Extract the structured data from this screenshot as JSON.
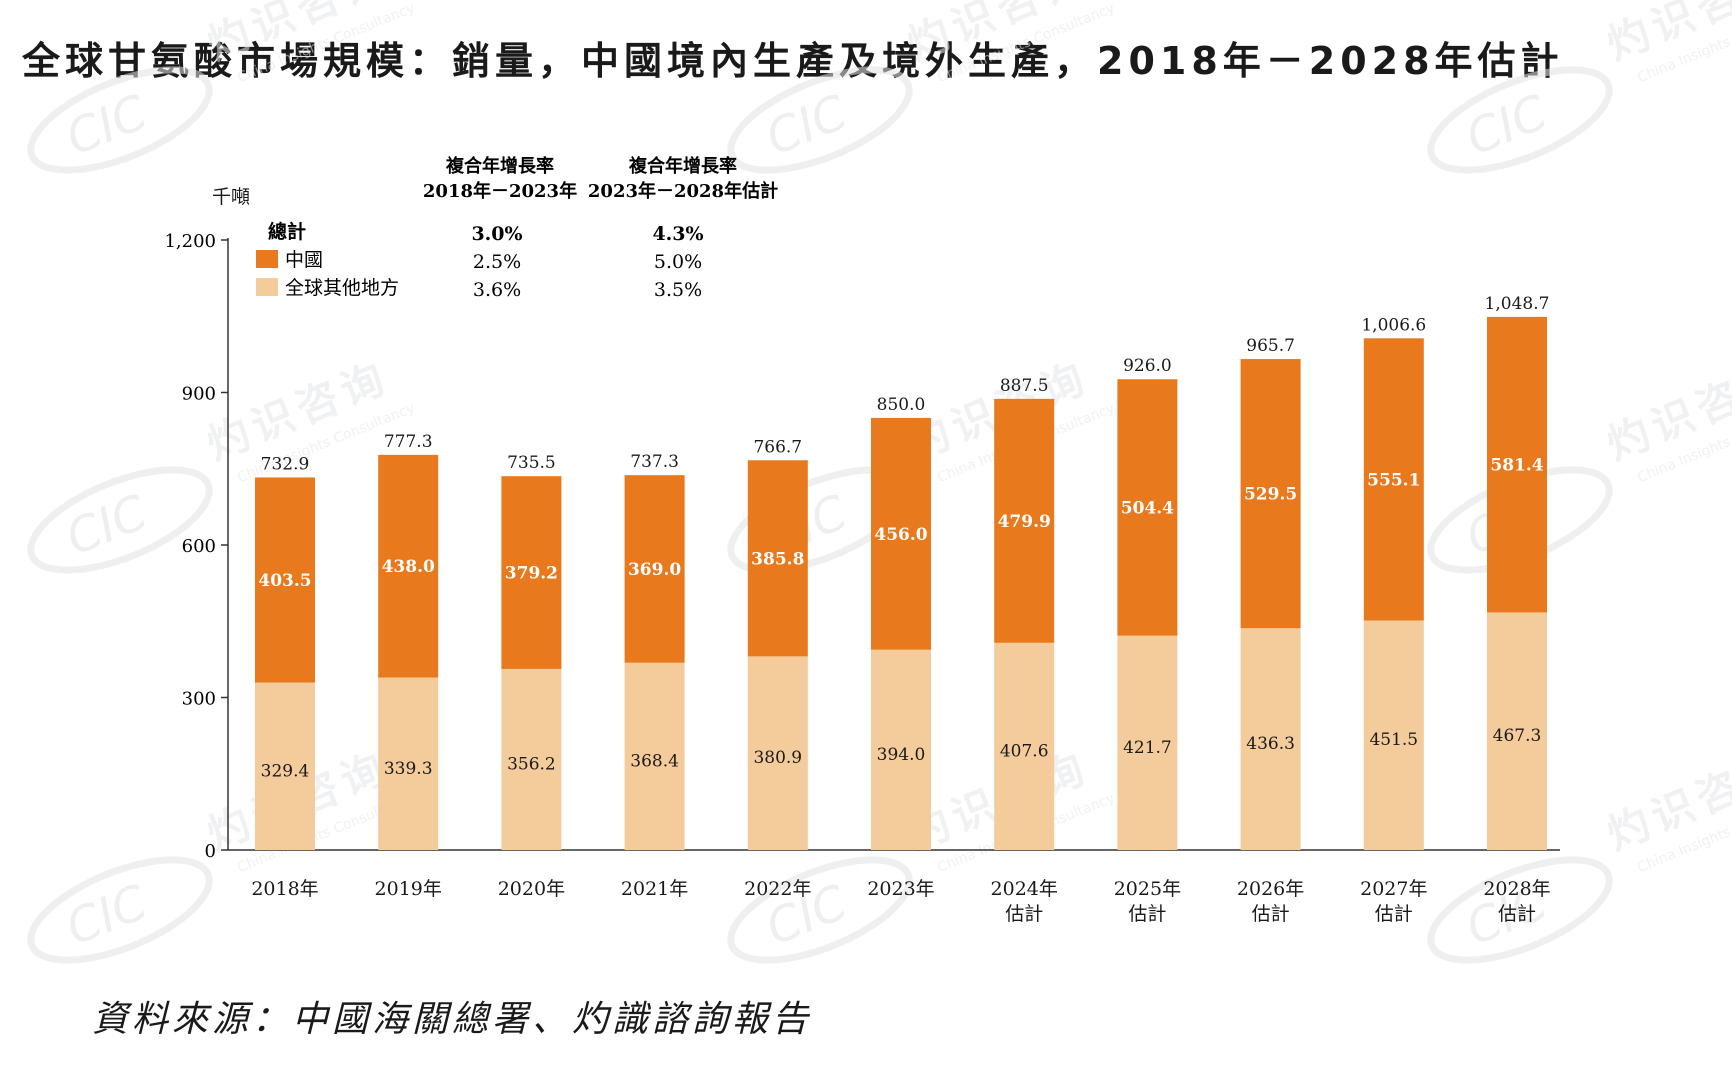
{
  "title": "全球甘氨酸市場規模：銷量，中國境內生產及境外生產，2018年－2028年估計",
  "source": "資料來源：中國海關總署、灼識諮詢報告",
  "watermark": {
    "logo": "CIC",
    "cn": "灼识咨询",
    "en": "China Insights Consultancy"
  },
  "colors": {
    "china": "#e8791c",
    "rest": "#f4cb9b",
    "axis": "#333333"
  },
  "chart_data": {
    "type": "bar",
    "stacked": true,
    "yunit": "千噸",
    "ylim": [
      0,
      1200
    ],
    "yticks": [
      "0",
      "300",
      "600",
      "900",
      "1,200"
    ],
    "categories": [
      [
        "2018年"
      ],
      [
        "2019年"
      ],
      [
        "2020年"
      ],
      [
        "2021年"
      ],
      [
        "2022年"
      ],
      [
        "2023年"
      ],
      [
        "2024年",
        "估計"
      ],
      [
        "2025年",
        "估計"
      ],
      [
        "2026年",
        "估計"
      ],
      [
        "2027年",
        "估計"
      ],
      [
        "2028年",
        "估計"
      ]
    ],
    "series": [
      {
        "name": "全球其他地方",
        "values": [
          329.4,
          339.3,
          356.2,
          368.4,
          380.9,
          394.0,
          407.6,
          421.7,
          436.3,
          451.5,
          467.3
        ],
        "labels": [
          "329.4",
          "339.3",
          "356.2",
          "368.4",
          "380.9",
          "394.0",
          "407.6",
          "421.7",
          "436.3",
          "451.5",
          "467.3"
        ]
      },
      {
        "name": "中國",
        "values": [
          403.5,
          438.0,
          379.2,
          369.0,
          385.8,
          456.0,
          479.9,
          504.4,
          529.5,
          555.1,
          581.4
        ],
        "labels": [
          "403.5",
          "438.0",
          "379.2",
          "369.0",
          "385.8",
          "456.0",
          "479.9",
          "504.4",
          "529.5",
          "555.1",
          "581.4"
        ]
      }
    ],
    "totals": [
      732.9,
      777.3,
      735.5,
      737.3,
      766.7,
      850.0,
      887.5,
      926.0,
      965.7,
      1006.6,
      1048.7
    ],
    "total_labels": [
      "732.9",
      "777.3",
      "735.5",
      "737.3",
      "766.7",
      "850.0",
      "887.5",
      "926.0",
      "965.7",
      "1,006.6",
      "1,048.7"
    ],
    "cagr_table": {
      "headers": [
        [
          "複合年增長率",
          "2018年－2023年"
        ],
        [
          "複合年增長率",
          "2023年－2028年估計"
        ]
      ],
      "rows": [
        {
          "label": "總計",
          "values": [
            "3.0%",
            "4.3%"
          ],
          "bold": true,
          "swatch": ""
        },
        {
          "label": "中國",
          "values": [
            "2.5%",
            "5.0%"
          ],
          "bold": false,
          "swatch": "#e8791c"
        },
        {
          "label": "全球其他地方",
          "values": [
            "3.6%",
            "3.5%"
          ],
          "bold": false,
          "swatch": "#f4cb9b"
        }
      ]
    }
  }
}
